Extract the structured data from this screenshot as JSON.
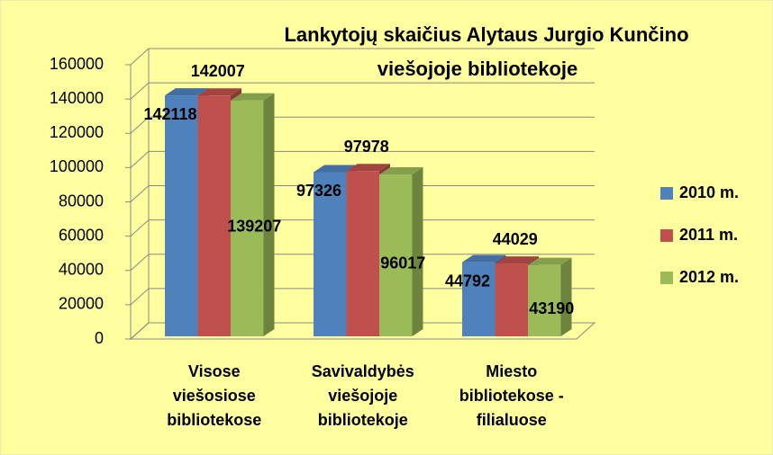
{
  "chart_data": {
    "type": "bar3d",
    "title": [
      "Lankytojų skaičius Alytaus Jurgio Kunčino",
      "viešojoje bibliotekoje"
    ],
    "categories": [
      "Visose\nviešosiose\nbibliotekose",
      "Savivaldybės\nviešojoje\nbibliotekoje",
      "Miesto\nbibliotekose -\nfilialuose"
    ],
    "series": [
      {
        "name": "2010 m.",
        "color": "#4f81bd",
        "values": [
          142118,
          97326,
          44792
        ]
      },
      {
        "name": "2011 m.",
        "color": "#c0504d",
        "values": [
          142007,
          97978,
          44029
        ]
      },
      {
        "name": "2012 m.",
        "color": "#9bbb59",
        "values": [
          139207,
          96017,
          43190
        ]
      }
    ],
    "ylim": [
      0,
      160000
    ],
    "yticks": [
      0,
      20000,
      40000,
      60000,
      80000,
      100000,
      120000,
      140000,
      160000
    ],
    "grid": true,
    "legend": "right"
  }
}
